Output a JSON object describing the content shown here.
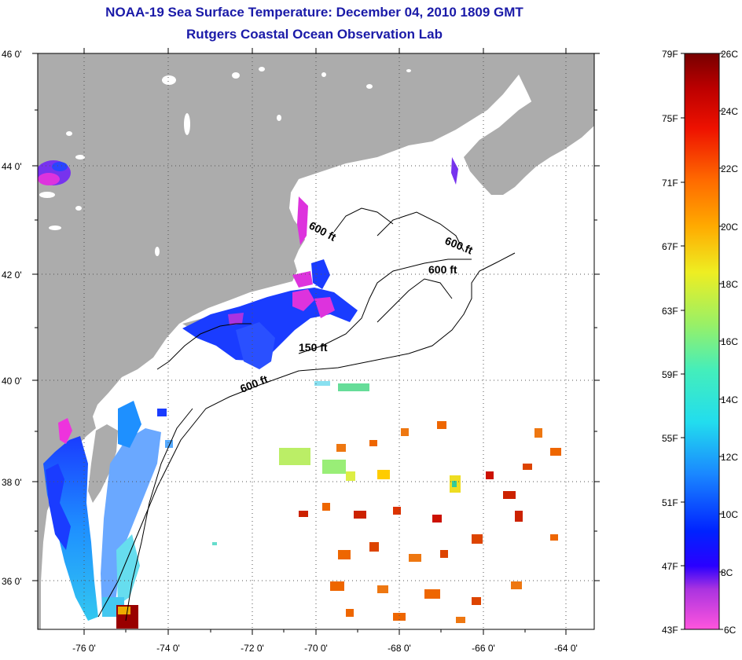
{
  "header": {
    "title": "NOAA-19 Sea Surface Temperature:  December 04, 2010 1809 GMT",
    "subtitle": "Rutgers Coastal Ocean Observation Lab"
  },
  "axes": {
    "lat_labels": [
      "46 0'",
      "44 0'",
      "42 0'",
      "40 0'",
      "38 0'",
      "36 0'"
    ],
    "lon_labels": [
      "-76 0'",
      "-74 0'",
      "-72 0'",
      "-70 0'",
      "-68 0'",
      "-66 0'",
      "-64 0'"
    ]
  },
  "isobaths": [
    "600 ft",
    "600 ft",
    "600 ft",
    "150 ft",
    "600 ft"
  ],
  "colorbar": {
    "fahrenheit": [
      "79F",
      "75F",
      "71F",
      "67F",
      "63F",
      "59F",
      "55F",
      "51F",
      "47F",
      "43F"
    ],
    "celsius": [
      "26C",
      "24C",
      "22C",
      "20C",
      "18C",
      "16C",
      "14C",
      "12C",
      "10C",
      "8C",
      "6C"
    ]
  },
  "colors": {
    "title": "#1a1aa8",
    "land": "#acacac",
    "ocean": "#ffffff"
  }
}
